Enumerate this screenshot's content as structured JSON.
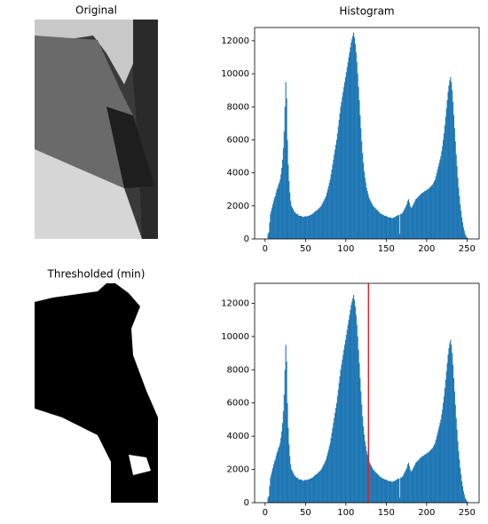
{
  "chart_data": [
    {
      "type": "image",
      "title": "Original"
    },
    {
      "type": "histogram",
      "title": "Histogram",
      "color": "#1f77b4",
      "bins": [
        3,
        4,
        5,
        6,
        7,
        8,
        9,
        10,
        11,
        12,
        13,
        14,
        15,
        16,
        17,
        18,
        19,
        20,
        21,
        22,
        23,
        24,
        25,
        26,
        27,
        28,
        29,
        30,
        31,
        32,
        33,
        34,
        35,
        36,
        37,
        38,
        39,
        40,
        41,
        42,
        43,
        44,
        45,
        46,
        47,
        48,
        49,
        50,
        51,
        52,
        53,
        54,
        55,
        56,
        57,
        58,
        59,
        60,
        61,
        62,
        63,
        64,
        65,
        66,
        67,
        68,
        69,
        70,
        71,
        72,
        73,
        74,
        75,
        76,
        77,
        78,
        79,
        80,
        81,
        82,
        83,
        84,
        85,
        86,
        87,
        88,
        89,
        90,
        91,
        92,
        93,
        94,
        95,
        96,
        97,
        98,
        99,
        100,
        101,
        102,
        103,
        104,
        105,
        106,
        107,
        108,
        109,
        110,
        111,
        112,
        113,
        114,
        115,
        116,
        117,
        118,
        119,
        120,
        121,
        122,
        123,
        124,
        125,
        126,
        127,
        128,
        129,
        130,
        131,
        132,
        133,
        134,
        135,
        136,
        137,
        138,
        139,
        140,
        141,
        142,
        143,
        144,
        145,
        146,
        147,
        148,
        149,
        150,
        151,
        152,
        153,
        154,
        155,
        156,
        157,
        158,
        159,
        160,
        161,
        162,
        163,
        164,
        165,
        166,
        167,
        168,
        169,
        170,
        171,
        172,
        173,
        174,
        175,
        176,
        177,
        178,
        179,
        180,
        181,
        182,
        183,
        184,
        185,
        186,
        187,
        188,
        189,
        190,
        191,
        192,
        193,
        194,
        195,
        196,
        197,
        198,
        199,
        200,
        201,
        202,
        203,
        204,
        205,
        206,
        207,
        208,
        209,
        210,
        211,
        212,
        213,
        214,
        215,
        216,
        217,
        218,
        219,
        220,
        221,
        222,
        223,
        224,
        225,
        226,
        227,
        228,
        229,
        230,
        231,
        232,
        233,
        234,
        235,
        236,
        237,
        238,
        239,
        240,
        241,
        242,
        243,
        244,
        245,
        246,
        247,
        248,
        249,
        250,
        251
      ],
      "values": [
        300,
        400,
        1000,
        1500,
        1700,
        1900,
        2100,
        2300,
        2500,
        2600,
        2800,
        3000,
        3100,
        3300,
        3400,
        3600,
        3900,
        4300,
        4800,
        5500,
        6500,
        8000,
        9500,
        8500,
        6000,
        4500,
        3500,
        2800,
        2300,
        2000,
        1900,
        1800,
        1700,
        1600,
        1600,
        1500,
        1500,
        1500,
        1400,
        1400,
        1400,
        1400,
        1350,
        1350,
        1300,
        1350,
        1400,
        1350,
        1350,
        1400,
        1400,
        1400,
        1450,
        1450,
        1500,
        1500,
        1550,
        1600,
        1650,
        1700,
        1700,
        1750,
        1800,
        1850,
        1900,
        1950,
        2000,
        2100,
        2200,
        2300,
        2400,
        2500,
        2600,
        2800,
        3000,
        3200,
        3400,
        3600,
        3900,
        4200,
        4500,
        4800,
        5100,
        5400,
        5700,
        6000,
        6400,
        6800,
        7200,
        7600,
        8000,
        8300,
        8600,
        8900,
        9200,
        9500,
        9800,
        10100,
        10400,
        10700,
        11000,
        11300,
        11600,
        11900,
        12100,
        12300,
        12500,
        12200,
        11800,
        11300,
        10700,
        10000,
        9200,
        8400,
        7500,
        6700,
        5900,
        5200,
        4600,
        4100,
        3700,
        3400,
        3100,
        2900,
        2700,
        2500,
        2400,
        2300,
        2200,
        2100,
        2000,
        1950,
        1900,
        1850,
        1800,
        1750,
        1700,
        1650,
        1600,
        1550,
        1500,
        1500,
        1450,
        1450,
        1400,
        1400,
        1400,
        1350,
        1350,
        1300,
        1300,
        1300,
        1300,
        1250,
        1250,
        1300,
        1300,
        1300,
        1350,
        1400,
        1400,
        1450,
        1450,
        300,
        1500,
        1500,
        1550,
        1600,
        1700,
        1800,
        1900,
        2000,
        2100,
        2300,
        2400,
        2200,
        2000,
        1900,
        1900,
        2000,
        2100,
        2200,
        2300,
        2400,
        2450,
        2500,
        2550,
        2600,
        2650,
        2700,
        2750,
        2800,
        2800,
        2850,
        2900,
        2900,
        2950,
        3000,
        3000,
        3050,
        3100,
        3150,
        3200,
        3250,
        3300,
        3400,
        3500,
        3600,
        3800,
        4000,
        4200,
        4400,
        4600,
        4800,
        5000,
        5300,
        5600,
        6000,
        6400,
        6900,
        7400,
        7900,
        8400,
        8900,
        9300,
        9600,
        9800,
        9500,
        9000,
        8300,
        7500,
        6700,
        5900,
        5100,
        4400,
        3700,
        3100,
        2600,
        2100,
        1700,
        1300,
        1000,
        700,
        500,
        300,
        200,
        100,
        50
      ],
      "xlim": [
        -13,
        265
      ],
      "xticks": [
        0,
        50,
        100,
        150,
        200,
        250
      ],
      "ylim": [
        0,
        12800
      ],
      "yticks": [
        0,
        2000,
        4000,
        6000,
        8000,
        10000,
        12000
      ]
    },
    {
      "type": "image",
      "title": "Thresholded (min)"
    },
    {
      "type": "histogram",
      "color": "#1f77b4",
      "bins": [
        3,
        4,
        5,
        6,
        7,
        8,
        9,
        10,
        11,
        12,
        13,
        14,
        15,
        16,
        17,
        18,
        19,
        20,
        21,
        22,
        23,
        24,
        25,
        26,
        27,
        28,
        29,
        30,
        31,
        32,
        33,
        34,
        35,
        36,
        37,
        38,
        39,
        40,
        41,
        42,
        43,
        44,
        45,
        46,
        47,
        48,
        49,
        50,
        51,
        52,
        53,
        54,
        55,
        56,
        57,
        58,
        59,
        60,
        61,
        62,
        63,
        64,
        65,
        66,
        67,
        68,
        69,
        70,
        71,
        72,
        73,
        74,
        75,
        76,
        77,
        78,
        79,
        80,
        81,
        82,
        83,
        84,
        85,
        86,
        87,
        88,
        89,
        90,
        91,
        92,
        93,
        94,
        95,
        96,
        97,
        98,
        99,
        100,
        101,
        102,
        103,
        104,
        105,
        106,
        107,
        108,
        109,
        110,
        111,
        112,
        113,
        114,
        115,
        116,
        117,
        118,
        119,
        120,
        121,
        122,
        123,
        124,
        125,
        126,
        127,
        128,
        129,
        130,
        131,
        132,
        133,
        134,
        135,
        136,
        137,
        138,
        139,
        140,
        141,
        142,
        143,
        144,
        145,
        146,
        147,
        148,
        149,
        150,
        151,
        152,
        153,
        154,
        155,
        156,
        157,
        158,
        159,
        160,
        161,
        162,
        163,
        164,
        165,
        166,
        167,
        168,
        169,
        170,
        171,
        172,
        173,
        174,
        175,
        176,
        177,
        178,
        179,
        180,
        181,
        182,
        183,
        184,
        185,
        186,
        187,
        188,
        189,
        190,
        191,
        192,
        193,
        194,
        195,
        196,
        197,
        198,
        199,
        200,
        201,
        202,
        203,
        204,
        205,
        206,
        207,
        208,
        209,
        210,
        211,
        212,
        213,
        214,
        215,
        216,
        217,
        218,
        219,
        220,
        221,
        222,
        223,
        224,
        225,
        226,
        227,
        228,
        229,
        230,
        231,
        232,
        233,
        234,
        235,
        236,
        237,
        238,
        239,
        240,
        241,
        242,
        243,
        244,
        245,
        246,
        247,
        248,
        249,
        250,
        251
      ],
      "values": [
        300,
        400,
        1000,
        1500,
        1700,
        1900,
        2100,
        2300,
        2500,
        2600,
        2800,
        3000,
        3100,
        3300,
        3400,
        3600,
        3900,
        4300,
        4800,
        5500,
        6500,
        8000,
        9500,
        8500,
        6000,
        4500,
        3500,
        2800,
        2300,
        2000,
        1900,
        1800,
        1700,
        1600,
        1600,
        1500,
        1500,
        1500,
        1400,
        1400,
        1400,
        1400,
        1350,
        1350,
        1300,
        1350,
        1400,
        1350,
        1350,
        1400,
        1400,
        1400,
        1450,
        1450,
        1500,
        1500,
        1550,
        1600,
        1650,
        1700,
        1700,
        1750,
        1800,
        1850,
        1900,
        1950,
        2000,
        2100,
        2200,
        2300,
        2400,
        2500,
        2600,
        2800,
        3000,
        3200,
        3400,
        3600,
        3900,
        4200,
        4500,
        4800,
        5100,
        5400,
        5700,
        6000,
        6400,
        6800,
        7200,
        7600,
        8000,
        8300,
        8600,
        8900,
        9200,
        9500,
        9800,
        10100,
        10400,
        10700,
        11000,
        11300,
        11600,
        11900,
        12100,
        12300,
        12500,
        12200,
        11800,
        11300,
        10700,
        10000,
        9200,
        8400,
        7500,
        6700,
        5900,
        5200,
        4600,
        4100,
        3700,
        3400,
        3100,
        2900,
        2700,
        2500,
        2400,
        2300,
        2200,
        2100,
        2000,
        1950,
        1900,
        1850,
        1800,
        1750,
        1700,
        1650,
        1600,
        1550,
        1500,
        1500,
        1450,
        1450,
        1400,
        1400,
        1400,
        1350,
        1350,
        1300,
        1300,
        1300,
        1300,
        1250,
        1250,
        1300,
        1300,
        1300,
        1350,
        1400,
        1400,
        1450,
        1450,
        300,
        1500,
        1500,
        1550,
        1600,
        1700,
        1800,
        1900,
        2000,
        2100,
        2300,
        2400,
        2200,
        2000,
        1900,
        1900,
        2000,
        2100,
        2200,
        2300,
        2400,
        2450,
        2500,
        2550,
        2600,
        2650,
        2700,
        2750,
        2800,
        2800,
        2850,
        2900,
        2900,
        2950,
        3000,
        3000,
        3050,
        3100,
        3150,
        3200,
        3250,
        3300,
        3400,
        3500,
        3600,
        3800,
        4000,
        4200,
        4400,
        4600,
        4800,
        5000,
        5300,
        5600,
        6000,
        6400,
        6900,
        7400,
        7900,
        8400,
        8900,
        9300,
        9600,
        9800,
        9500,
        9000,
        8300,
        7500,
        6700,
        5900,
        5100,
        4400,
        3700,
        3100,
        2600,
        2100,
        1700,
        1300,
        1000,
        700,
        500,
        300,
        200,
        100,
        50
      ],
      "xlim": [
        -13,
        265
      ],
      "xticks": [
        0,
        50,
        100,
        150,
        200,
        250
      ],
      "ylim": [
        0,
        13200
      ],
      "yticks": [
        0,
        2000,
        4000,
        6000,
        8000,
        10000,
        12000
      ],
      "vline": 128,
      "vline_color": "#d62728"
    }
  ]
}
